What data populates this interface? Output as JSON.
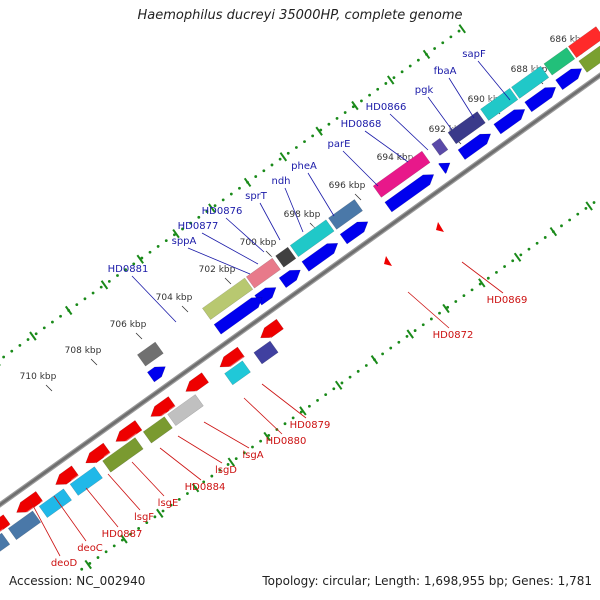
{
  "title": "Haemophilus ducreyi 35000HP, complete genome",
  "accession": "Accession: NC_002940",
  "topology": "Topology: circular; Length: 1,698,955 bp; Genes: 1,781",
  "scale_labels": [
    "686 kbp",
    "688 kbp",
    "690 kbp",
    "692 kbp",
    "694 kbp",
    "696 kbp",
    "698 kbp",
    "700 kbp",
    "702 kbp",
    "704 kbp",
    "706 kbp",
    "708 kbp",
    "710 kbp"
  ],
  "genes_forward": [
    "sapF",
    "fbaA",
    "pgk",
    "HD0866",
    "HD0868",
    "parE",
    "pheA",
    "ndh",
    "sprT",
    "HD0876",
    "HD0877",
    "sppA",
    "HD0881"
  ],
  "genes_reverse": [
    "HD0869",
    "HD0872",
    "HD0879",
    "HD0880",
    "lsgA",
    "lsgD",
    "HD0884",
    "lsgE",
    "lsgF",
    "HD0887",
    "deoC",
    "deoD"
  ],
  "colors": {
    "forward_label": "#1a1aa8",
    "reverse_label": "#cc1111",
    "forward_arrow": "#0000ee",
    "reverse_arrow": "#ee0000",
    "tick": "#1a8a1a"
  }
}
